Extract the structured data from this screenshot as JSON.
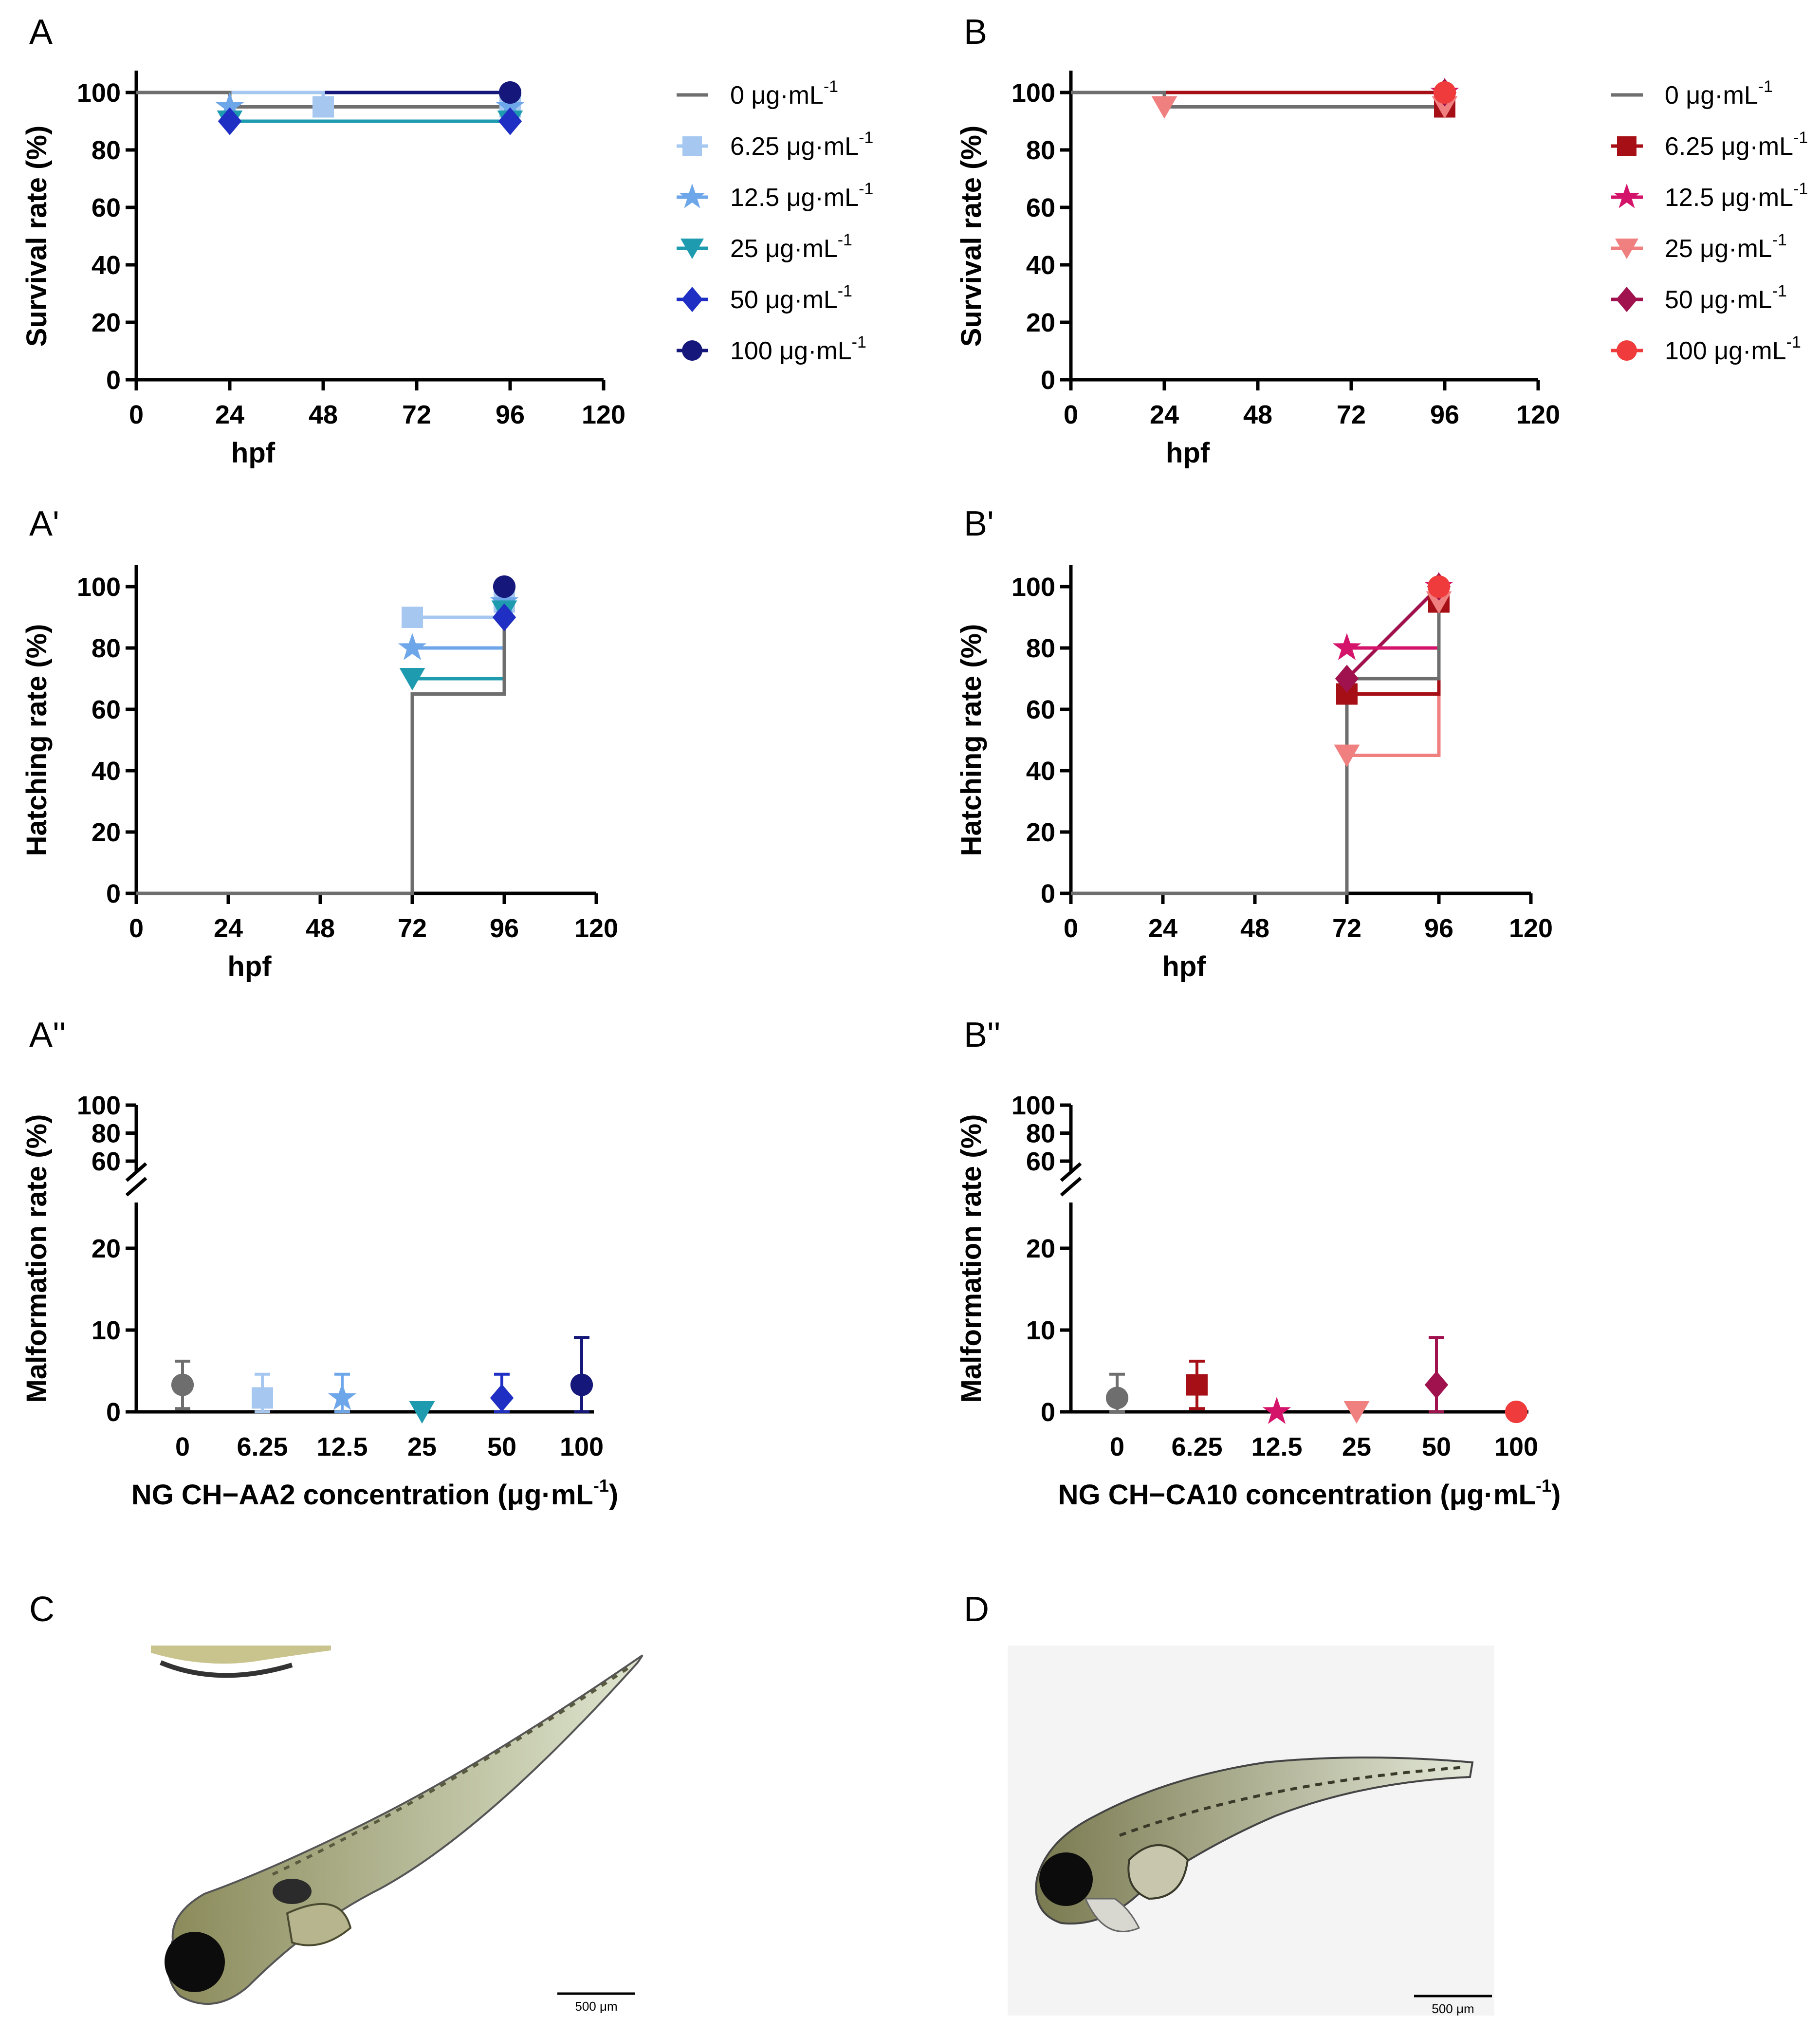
{
  "panel_labels": {
    "A": "A",
    "B": "B",
    "A1": "A'",
    "B1": "B'",
    "A2": "A''",
    "B2": "B''",
    "C": "C",
    "D": "D"
  },
  "legend_unit": "μg·mL",
  "legend_sup": "-1",
  "colors": {
    "A": [
      "#6e6e6e",
      "#a6c8f0",
      "#6ea6ea",
      "#1f9bb0",
      "#1f2fc4",
      "#15187a"
    ],
    "B": [
      "#6e6e6e",
      "#a50f15",
      "#d4146a",
      "#f08080",
      "#a0124e",
      "#ef3b3b"
    ]
  },
  "chart_data": [
    {
      "id": "A",
      "type": "line",
      "ylabel": "Survival rate (%)",
      "xlabel": "hpf",
      "xlim": [
        0,
        120
      ],
      "ylim": [
        0,
        100
      ],
      "xticks": [
        0,
        24,
        48,
        72,
        96,
        120
      ],
      "yticks": [
        0,
        20,
        40,
        60,
        80,
        100
      ],
      "series": [
        {
          "name": "0 μg·mL⁻¹",
          "marker": "none",
          "points": [
            [
              0,
              100
            ],
            [
              24,
              100
            ],
            [
              24,
              95
            ],
            [
              96,
              95
            ]
          ]
        },
        {
          "name": "6.25 μg·mL⁻¹",
          "marker": "square",
          "points": [
            [
              0,
              100
            ],
            [
              24,
              100
            ],
            [
              24,
              100
            ],
            [
              48,
              100
            ],
            [
              48,
              95
            ],
            [
              96,
              95
            ]
          ]
        },
        {
          "name": "12.5 μg·mL⁻¹",
          "marker": "star",
          "points": [
            [
              0,
              100
            ],
            [
              24,
              100
            ],
            [
              24,
              95
            ],
            [
              96,
              95
            ]
          ]
        },
        {
          "name": "25 μg·mL⁻¹",
          "marker": "triangle-down",
          "points": [
            [
              0,
              100
            ],
            [
              24,
              100
            ],
            [
              24,
              90
            ],
            [
              96,
              90
            ]
          ]
        },
        {
          "name": "50 μg·mL⁻¹",
          "marker": "diamond",
          "points": [
            [
              0,
              100
            ],
            [
              24,
              100
            ],
            [
              24,
              90
            ],
            [
              96,
              90
            ]
          ]
        },
        {
          "name": "100 μg·mL⁻¹",
          "marker": "circle",
          "points": [
            [
              0,
              100
            ],
            [
              96,
              100
            ]
          ]
        }
      ],
      "legend": [
        "0",
        "6.25",
        "12.5",
        "25",
        "50",
        "100"
      ]
    },
    {
      "id": "B",
      "type": "line",
      "ylabel": "Survival rate (%)",
      "xlabel": "hpf",
      "xlim": [
        0,
        120
      ],
      "ylim": [
        0,
        100
      ],
      "xticks": [
        0,
        24,
        48,
        72,
        96,
        120
      ],
      "yticks": [
        0,
        20,
        40,
        60,
        80,
        100
      ],
      "series": [
        {
          "name": "0 μg·mL⁻¹",
          "marker": "none",
          "points": [
            [
              0,
              100
            ],
            [
              24,
              100
            ],
            [
              24,
              95
            ],
            [
              96,
              95
            ]
          ]
        },
        {
          "name": "6.25 μg·mL⁻¹",
          "marker": "square",
          "points": [
            [
              0,
              100
            ],
            [
              96,
              100
            ],
            [
              96,
              95
            ]
          ]
        },
        {
          "name": "12.5 μg·mL⁻¹",
          "marker": "star",
          "points": [
            [
              0,
              100
            ],
            [
              96,
              100
            ]
          ]
        },
        {
          "name": "25 μg·mL⁻¹",
          "marker": "triangle-down",
          "points": [
            [
              0,
              100
            ],
            [
              24,
              100
            ],
            [
              24,
              95
            ],
            [
              96,
              95
            ]
          ]
        },
        {
          "name": "50 μg·mL⁻¹",
          "marker": "diamond",
          "points": [
            [
              0,
              100
            ],
            [
              96,
              100
            ]
          ]
        },
        {
          "name": "100 μg·mL⁻¹",
          "marker": "circle",
          "points": [
            [
              0,
              100
            ],
            [
              96,
              100
            ]
          ]
        }
      ],
      "legend": [
        "0",
        "6.25",
        "12.5",
        "25",
        "50",
        "100"
      ]
    },
    {
      "id": "A1",
      "type": "line",
      "ylabel": "Hatching rate (%)",
      "xlabel": "hpf",
      "xlim": [
        0,
        120
      ],
      "ylim": [
        0,
        100
      ],
      "xticks": [
        0,
        24,
        48,
        72,
        96,
        120
      ],
      "yticks": [
        0,
        20,
        40,
        60,
        80,
        100
      ],
      "series": [
        {
          "name": "0 μg·mL⁻¹",
          "marker": "none",
          "points": [
            [
              0,
              0
            ],
            [
              72,
              0
            ],
            [
              72,
              65
            ],
            [
              96,
              65
            ],
            [
              96,
              95
            ]
          ]
        },
        {
          "name": "6.25 μg·mL⁻¹",
          "marker": "square",
          "points": [
            [
              72,
              90
            ],
            [
              96,
              90
            ],
            [
              96,
              95
            ]
          ]
        },
        {
          "name": "12.5 μg·mL⁻¹",
          "marker": "star",
          "points": [
            [
              72,
              80
            ],
            [
              96,
              80
            ],
            [
              96,
              95
            ]
          ]
        },
        {
          "name": "25 μg·mL⁻¹",
          "marker": "triangle-down",
          "points": [
            [
              72,
              70
            ],
            [
              96,
              70
            ],
            [
              96,
              92
            ]
          ]
        },
        {
          "name": "50 μg·mL⁻¹",
          "marker": "diamond",
          "points": [
            [
              96,
              90
            ]
          ]
        },
        {
          "name": "100 μg·mL⁻¹",
          "marker": "circle",
          "points": [
            [
              96,
              100
            ]
          ]
        }
      ]
    },
    {
      "id": "B1",
      "type": "line",
      "ylabel": "Hatching rate (%)",
      "xlabel": "hpf",
      "xlim": [
        0,
        120
      ],
      "ylim": [
        0,
        100
      ],
      "xticks": [
        0,
        24,
        48,
        72,
        96,
        120
      ],
      "yticks": [
        0,
        20,
        40,
        60,
        80,
        100
      ],
      "series": [
        {
          "name": "0 μg·mL⁻¹",
          "marker": "none",
          "points": [
            [
              0,
              0
            ],
            [
              72,
              0
            ],
            [
              72,
              70
            ],
            [
              96,
              70
            ],
            [
              96,
              95
            ]
          ]
        },
        {
          "name": "6.25 μg·mL⁻¹",
          "marker": "square",
          "points": [
            [
              72,
              65
            ],
            [
              96,
              65
            ],
            [
              96,
              95
            ]
          ]
        },
        {
          "name": "12.5 μg·mL⁻¹",
          "marker": "star",
          "points": [
            [
              72,
              80
            ],
            [
              96,
              80
            ],
            [
              96,
              100
            ]
          ]
        },
        {
          "name": "25 μg·mL⁻¹",
          "marker": "triangle-down",
          "points": [
            [
              72,
              45
            ],
            [
              96,
              45
            ],
            [
              96,
              95
            ]
          ]
        },
        {
          "name": "50 μg·mL⁻¹",
          "marker": "diamond",
          "points": [
            [
              72,
              70
            ],
            [
              96,
              100
            ]
          ]
        },
        {
          "name": "100 μg·mL⁻¹",
          "marker": "circle",
          "points": [
            [
              96,
              100
            ]
          ]
        }
      ]
    },
    {
      "id": "A2",
      "type": "scatter",
      "ylabel": "Malformation rate (%)",
      "xlabel": "NG CH−AA2 concentration (μg·mL",
      "categories": [
        "0",
        "6.25",
        "12.5",
        "25",
        "50",
        "100"
      ],
      "values": [
        3.3,
        1.7,
        1.7,
        0.0,
        1.7,
        3.3
      ],
      "error": [
        2.9,
        2.9,
        2.9,
        0.0,
        2.9,
        5.8
      ],
      "ylim": [
        0,
        100
      ],
      "y_break": [
        25,
        60
      ],
      "yticks": [
        0,
        10,
        20,
        60,
        80,
        100
      ]
    },
    {
      "id": "B2",
      "type": "scatter",
      "ylabel": "Malformation rate (%)",
      "xlabel": "NG CH−CA10 concentration (μg·mL",
      "categories": [
        "0",
        "6.25",
        "12.5",
        "25",
        "50",
        "100"
      ],
      "values": [
        1.7,
        3.3,
        0.0,
        0.0,
        3.3,
        0.0
      ],
      "error": [
        2.9,
        2.9,
        0.0,
        0.0,
        5.8,
        0.0
      ],
      "ylim": [
        0,
        100
      ],
      "y_break": [
        25,
        60
      ],
      "yticks": [
        0,
        10,
        20,
        60,
        80,
        100
      ]
    }
  ],
  "scale_bars": {
    "C": "500 μm",
    "D": "500 μm"
  }
}
